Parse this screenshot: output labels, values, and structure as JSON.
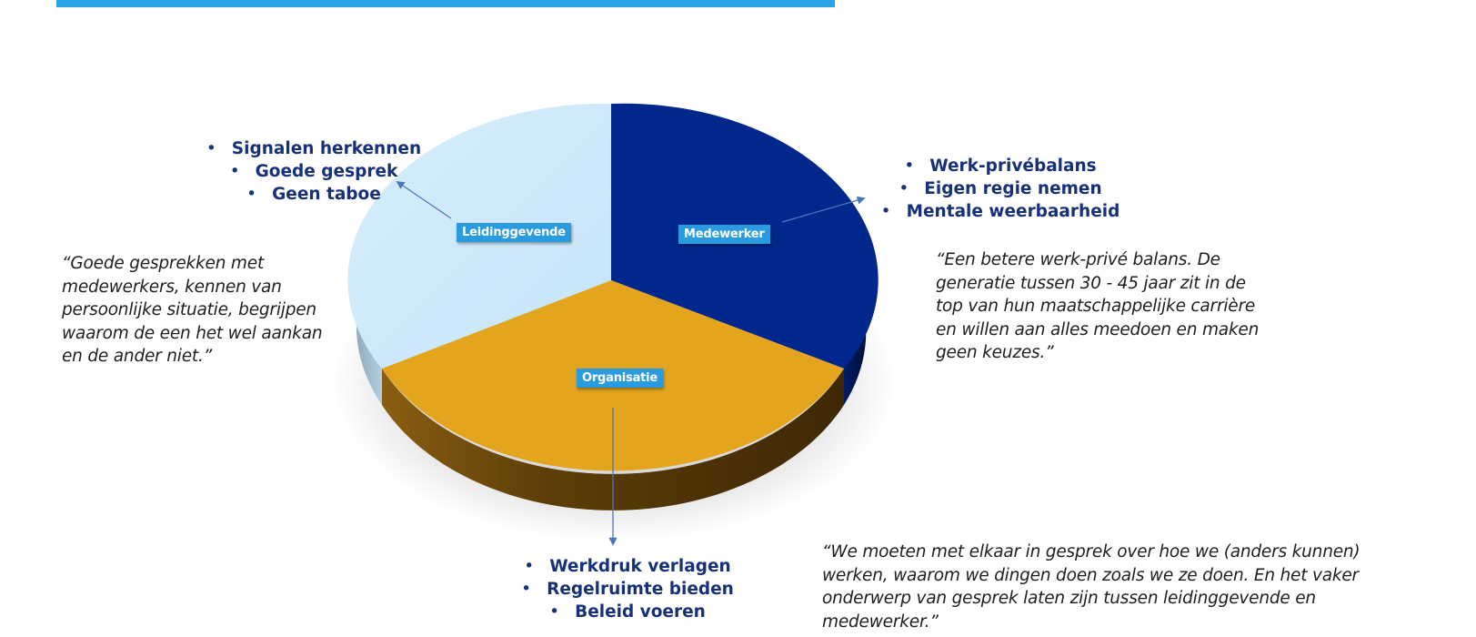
{
  "segments": [
    {
      "key": "medewerker",
      "label": "Medewerker",
      "color": "#00288c",
      "side_color": "#001a5e"
    },
    {
      "key": "organisatie",
      "label": "Organisatie",
      "color": "#e3a41e",
      "side_color": "#7a5410"
    },
    {
      "key": "leidinggevende",
      "label": "Leidinggevende",
      "color": "#cde9fb",
      "side_color": "#8fb0c6"
    }
  ],
  "leidinggevende": {
    "bullets": [
      "Signalen herkennen",
      "Goede gesprek",
      "Geen taboe"
    ],
    "quote": [
      "“Goede gesprekken met",
      "medewerkers, kennen van",
      "persoonlijke situatie, begrijpen",
      "waarom de een het wel aankan",
      "en de ander niet.”"
    ]
  },
  "medewerker": {
    "bullets": [
      "Werk-privébalans",
      "Eigen regie nemen",
      "Mentale weerbaarheid"
    ],
    "quote": [
      "“Een betere werk-privé balans. De",
      "generatie tussen 30 - 45 jaar zit in de",
      "top van hun maatschappelijke carrière",
      "en willen aan alles meedoen en maken",
      "geen keuzes.”"
    ]
  },
  "organisatie": {
    "bullets": [
      "Werkdruk verlagen",
      "Regelruimte bieden",
      "Beleid voeren"
    ],
    "quote": [
      "“We moeten met elkaar in gesprek over hoe we (anders kunnen)",
      "werken, waarom we dingen doen zoals we ze doen. En het vaker",
      "onderwerp van gesprek laten zijn tussen leidinggevende en",
      "medewerker.”"
    ]
  },
  "colors": {
    "accent_bar": "#29a3e8",
    "label_bg": "#2b9be0",
    "bullet_text": "#16307a",
    "arrow": "#4a76c0"
  }
}
